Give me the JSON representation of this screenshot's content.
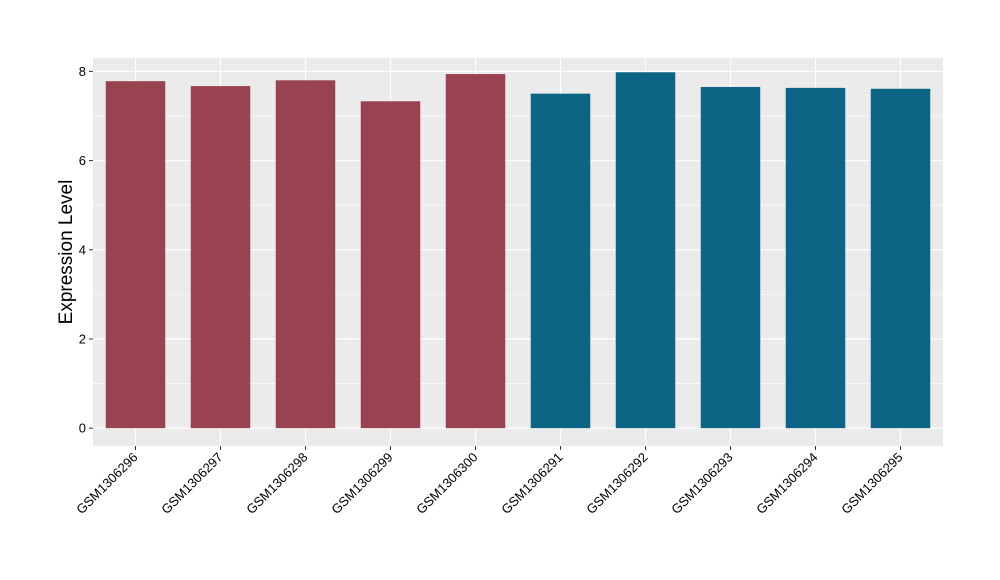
{
  "chart_data": {
    "type": "bar",
    "title": "",
    "xlabel": "",
    "ylabel": "Expression Level",
    "ylim": [
      -0.4,
      8.3
    ],
    "yticks": [
      0,
      2,
      4,
      6,
      8
    ],
    "grid": true,
    "legend": "none",
    "categories": [
      "GSM1306296",
      "GSM1306297",
      "GSM1306298",
      "GSM1306299",
      "GSM1306300",
      "GSM1306291",
      "GSM1306292",
      "GSM1306293",
      "GSM1306294",
      "GSM1306295"
    ],
    "values": [
      7.78,
      7.67,
      7.8,
      7.33,
      7.94,
      7.5,
      7.98,
      7.65,
      7.63,
      7.61
    ],
    "bar_colors": [
      "#9a4350",
      "#9a4350",
      "#9a4350",
      "#9a4350",
      "#9a4350",
      "#0d6586",
      "#0d6586",
      "#0d6586",
      "#0d6586",
      "#0d6586"
    ]
  },
  "colors": {
    "panel_background": "#ebebeb",
    "grid": "#ffffff"
  }
}
